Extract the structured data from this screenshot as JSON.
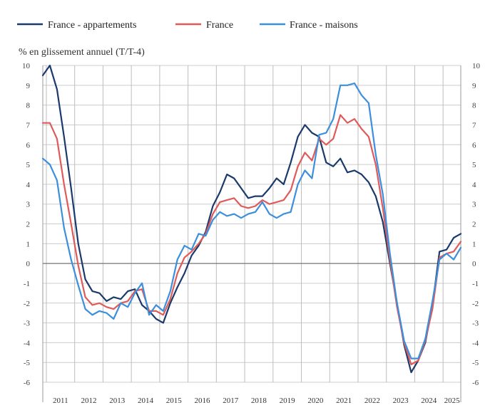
{
  "chart_data": {
    "type": "line",
    "title": "",
    "ylabel": "% en glissement annuel (T/T-4)",
    "xlabel": "",
    "ylim": [
      -6,
      10
    ],
    "yticks": [
      10,
      9,
      8,
      7,
      6,
      5,
      4,
      3,
      2,
      1,
      0,
      -1,
      -2,
      -3,
      -4,
      -5,
      -6
    ],
    "ytick_labels": [
      "10",
      "9",
      "8",
      "7",
      "6",
      "5",
      "4",
      "3",
      "2",
      "1",
      "0",
      "-1",
      "-2",
      "-3",
      "-4",
      "-5",
      "-6"
    ],
    "year_labels": [
      "2011",
      "2012",
      "2013",
      "2014",
      "2015",
      "2016",
      "2017",
      "2018",
      "2019",
      "2020",
      "2021",
      "2022",
      "2023",
      "2024",
      "2025"
    ],
    "x_start": "2010-T4",
    "x_end": "2025-T1",
    "grid": true,
    "legend_position": "top",
    "series": [
      {
        "name": "France - appartements",
        "color": "#1b3a6b",
        "values": [
          9.5,
          10.0,
          8.8,
          6.4,
          3.8,
          1.0,
          -0.8,
          -1.4,
          -1.5,
          -1.9,
          -1.7,
          -1.8,
          -1.4,
          -1.3,
          -2.1,
          -2.4,
          -2.8,
          -3.0,
          -2.0,
          -1.2,
          -0.5,
          0.4,
          0.9,
          1.6,
          2.9,
          3.6,
          4.5,
          4.3,
          3.8,
          3.3,
          3.4,
          3.4,
          3.8,
          4.3,
          4.0,
          5.1,
          6.4,
          7.0,
          6.6,
          6.4,
          5.1,
          4.9,
          5.3,
          4.6,
          4.7,
          4.5,
          4.1,
          3.4,
          2.1,
          0.0,
          -2.0,
          -4.1,
          -5.5,
          -4.9,
          -4.0,
          -2.1,
          0.6,
          0.7,
          1.3,
          1.5
        ]
      },
      {
        "name": "France",
        "color": "#e05a5a",
        "values": [
          7.1,
          7.1,
          6.3,
          4.0,
          2.0,
          -0.1,
          -1.7,
          -2.1,
          -2.0,
          -2.2,
          -2.3,
          -2.0,
          -1.9,
          -1.4,
          -1.3,
          -2.4,
          -2.4,
          -2.6,
          -1.8,
          -0.5,
          0.3,
          0.6,
          1.0,
          1.5,
          2.5,
          3.1,
          3.2,
          3.3,
          2.9,
          2.8,
          2.9,
          3.2,
          3.0,
          3.1,
          3.2,
          3.7,
          4.9,
          5.6,
          5.2,
          6.3,
          6.0,
          6.3,
          7.5,
          7.1,
          7.3,
          6.8,
          6.4,
          5.0,
          2.8,
          0.2,
          -2.2,
          -4.0,
          -5.1,
          -4.9,
          -3.9,
          -2.3,
          0.3,
          0.5,
          0.6,
          1.1
        ]
      },
      {
        "name": "France - maisons",
        "color": "#3c8fdc",
        "values": [
          5.3,
          5.0,
          4.2,
          1.8,
          0.2,
          -1.1,
          -2.3,
          -2.6,
          -2.4,
          -2.5,
          -2.8,
          -2.0,
          -2.2,
          -1.5,
          -1.0,
          -2.6,
          -2.1,
          -2.4,
          -1.4,
          0.2,
          0.9,
          0.7,
          1.5,
          1.4,
          2.2,
          2.6,
          2.4,
          2.5,
          2.3,
          2.5,
          2.6,
          3.1,
          2.5,
          2.3,
          2.5,
          2.6,
          4.0,
          4.7,
          4.3,
          6.5,
          6.6,
          7.3,
          9.0,
          9.0,
          9.1,
          8.5,
          8.1,
          5.5,
          3.5,
          0.5,
          -2.0,
          -3.9,
          -4.8,
          -4.8,
          -3.8,
          -1.9,
          0.2,
          0.5,
          0.2,
          0.8
        ]
      }
    ]
  }
}
